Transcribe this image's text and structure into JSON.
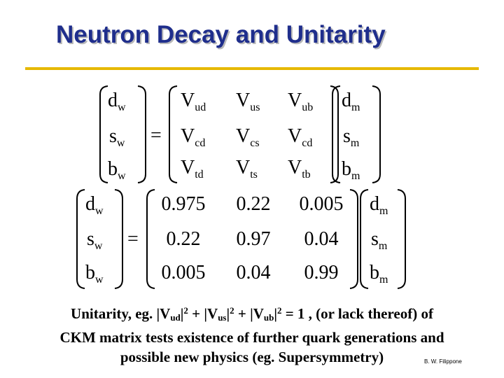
{
  "slide": {
    "title": "Neutron Decay and Unitarity",
    "credit": "B. W. Filippone"
  },
  "equation1": {
    "lhs": [
      {
        "base": "d",
        "sub": "w"
      },
      {
        "base": "s",
        "sub": "w"
      },
      {
        "base": "b",
        "sub": "w"
      }
    ],
    "equals": "=",
    "matrix": [
      [
        {
          "base": "V",
          "sub": "ud"
        },
        {
          "base": "V",
          "sub": "us"
        },
        {
          "base": "V",
          "sub": "ub"
        }
      ],
      [
        {
          "base": "V",
          "sub": "cd"
        },
        {
          "base": "V",
          "sub": "cs"
        },
        {
          "base": "V",
          "sub": "cd"
        }
      ],
      [
        {
          "base": "V",
          "sub": "td"
        },
        {
          "base": "V",
          "sub": "ts"
        },
        {
          "base": "V",
          "sub": "tb"
        }
      ]
    ],
    "rhs": [
      {
        "base": "d",
        "sub": "m"
      },
      {
        "base": "s",
        "sub": "m"
      },
      {
        "base": "b",
        "sub": "m"
      }
    ]
  },
  "equation2": {
    "lhs": [
      {
        "base": "d",
        "sub": "w"
      },
      {
        "base": "s",
        "sub": "w"
      },
      {
        "base": "b",
        "sub": "w"
      }
    ],
    "equals": "=",
    "matrix": [
      [
        "0.975",
        "0.22",
        "0.005"
      ],
      [
        "0.22",
        "0.97",
        "0.04"
      ],
      [
        "0.005",
        "0.04",
        "0.99"
      ]
    ],
    "rhs": [
      {
        "base": "d",
        "sub": "m"
      },
      {
        "base": "s",
        "sub": "m"
      },
      {
        "base": "b",
        "sub": "m"
      }
    ]
  },
  "body": {
    "line1_start": "Unitarity,  eg. |V",
    "sub_ud": "ud",
    "mid1": "|",
    "sup1": "2",
    "mid2": " + |V",
    "sub_us": "us",
    "mid3": "|",
    "sup2": "2",
    "mid4": " + |V",
    "sub_ub": "ub",
    "mid5": "|",
    "sup3": "2",
    "line1_end": " = 1 , (or lack thereof) of",
    "line2": "CKM matrix tests existence of further quark generations and",
    "line3": "possible new physics (eg. Supersymmetry)"
  }
}
